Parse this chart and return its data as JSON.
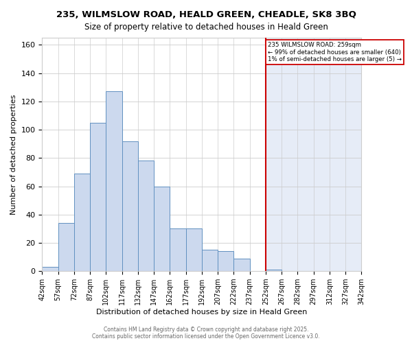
{
  "title": "235, WILMSLOW ROAD, HEALD GREEN, CHEADLE, SK8 3BQ",
  "subtitle": "Size of property relative to detached houses in Heald Green",
  "xlabel": "Distribution of detached houses by size in Heald Green",
  "ylabel": "Number of detached properties",
  "bar_color": "#ccd9ee",
  "bar_edge_color": "#6090c0",
  "red_line_color": "#cc0000",
  "annotation_border_color": "#cc0000",
  "property_line_x": 252,
  "bin_edges": [
    42,
    57,
    72,
    87,
    102,
    117,
    132,
    147,
    162,
    177,
    192,
    207,
    222,
    237,
    252,
    267,
    282,
    297,
    312,
    327,
    342
  ],
  "bin_counts": [
    3,
    34,
    69,
    105,
    127,
    92,
    78,
    60,
    30,
    30,
    15,
    14,
    9,
    0,
    1,
    0,
    0,
    0,
    0,
    0
  ],
  "ylim": [
    0,
    165
  ],
  "xlim": [
    42,
    342
  ],
  "tick_labels": [
    "42sqm",
    "57sqm",
    "72sqm",
    "87sqm",
    "102sqm",
    "117sqm",
    "132sqm",
    "147sqm",
    "162sqm",
    "177sqm",
    "192sqm",
    "207sqm",
    "222sqm",
    "237sqm",
    "252sqm",
    "267sqm",
    "282sqm",
    "297sqm",
    "312sqm",
    "327sqm",
    "342sqm"
  ],
  "yticks": [
    0,
    20,
    40,
    60,
    80,
    100,
    120,
    140,
    160
  ],
  "footer_line1": "Contains HM Land Registry data © Crown copyright and database right 2025.",
  "footer_line2": "Contains public sector information licensed under the Open Government Licence v3.0.",
  "bg_left_color": "#ffffff",
  "bg_right_color": "#e6ecf7",
  "figsize": [
    6.0,
    5.0
  ],
  "dpi": 100
}
